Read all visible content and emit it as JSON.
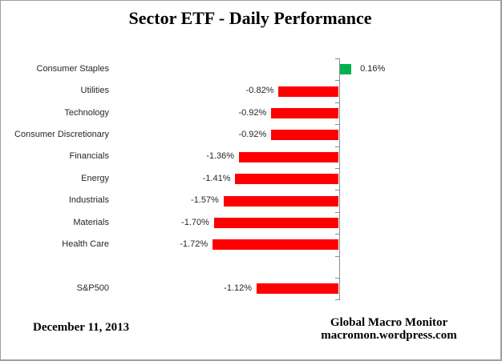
{
  "chart_data": {
    "type": "bar",
    "orientation": "horizontal",
    "title": "Sector ETF - Daily Performance",
    "unit": "%",
    "xlim": [
      -2.0,
      0.5
    ],
    "grid": false,
    "legend": false,
    "categories": [
      "Consumer Staples",
      "Utilities",
      "Technology",
      "Consumer Discretionary",
      "Financials",
      "Energy",
      "Industrials",
      "Materials",
      "Health Care",
      "S&P500"
    ],
    "values": [
      0.16,
      -0.82,
      -0.92,
      -0.92,
      -1.36,
      -1.41,
      -1.57,
      -1.7,
      -1.72,
      -1.12
    ],
    "rows": [
      {
        "label": "Consumer Staples",
        "value": 0.16,
        "display": "0.16%",
        "slot": 0
      },
      {
        "label": "Utilities",
        "value": -0.82,
        "display": "-0.82%",
        "slot": 1
      },
      {
        "label": "Technology",
        "value": -0.92,
        "display": "-0.92%",
        "slot": 2
      },
      {
        "label": "Consumer Discretionary",
        "value": -0.92,
        "display": "-0.92%",
        "slot": 3
      },
      {
        "label": "Financials",
        "value": -1.36,
        "display": "-1.36%",
        "slot": 4
      },
      {
        "label": "Energy",
        "value": -1.41,
        "display": "-1.41%",
        "slot": 5
      },
      {
        "label": "Industrials",
        "value": -1.57,
        "display": "-1.57%",
        "slot": 6
      },
      {
        "label": "Materials",
        "value": -1.7,
        "display": "-1.70%",
        "slot": 7
      },
      {
        "label": "Health Care",
        "value": -1.72,
        "display": "-1.72%",
        "slot": 8
      },
      {
        "label": "S&P500",
        "value": -1.12,
        "display": "-1.12%",
        "slot": 10
      }
    ],
    "slots": 11,
    "colors": {
      "positive": "#00B050",
      "negative": "#FF0000",
      "axis": "#8C8C8C",
      "text": "#262626"
    }
  },
  "footer": {
    "date": "December 11, 2013",
    "attribution_line1": "Global Macro Monitor",
    "attribution_line2": "macromon.wordpress.com"
  }
}
